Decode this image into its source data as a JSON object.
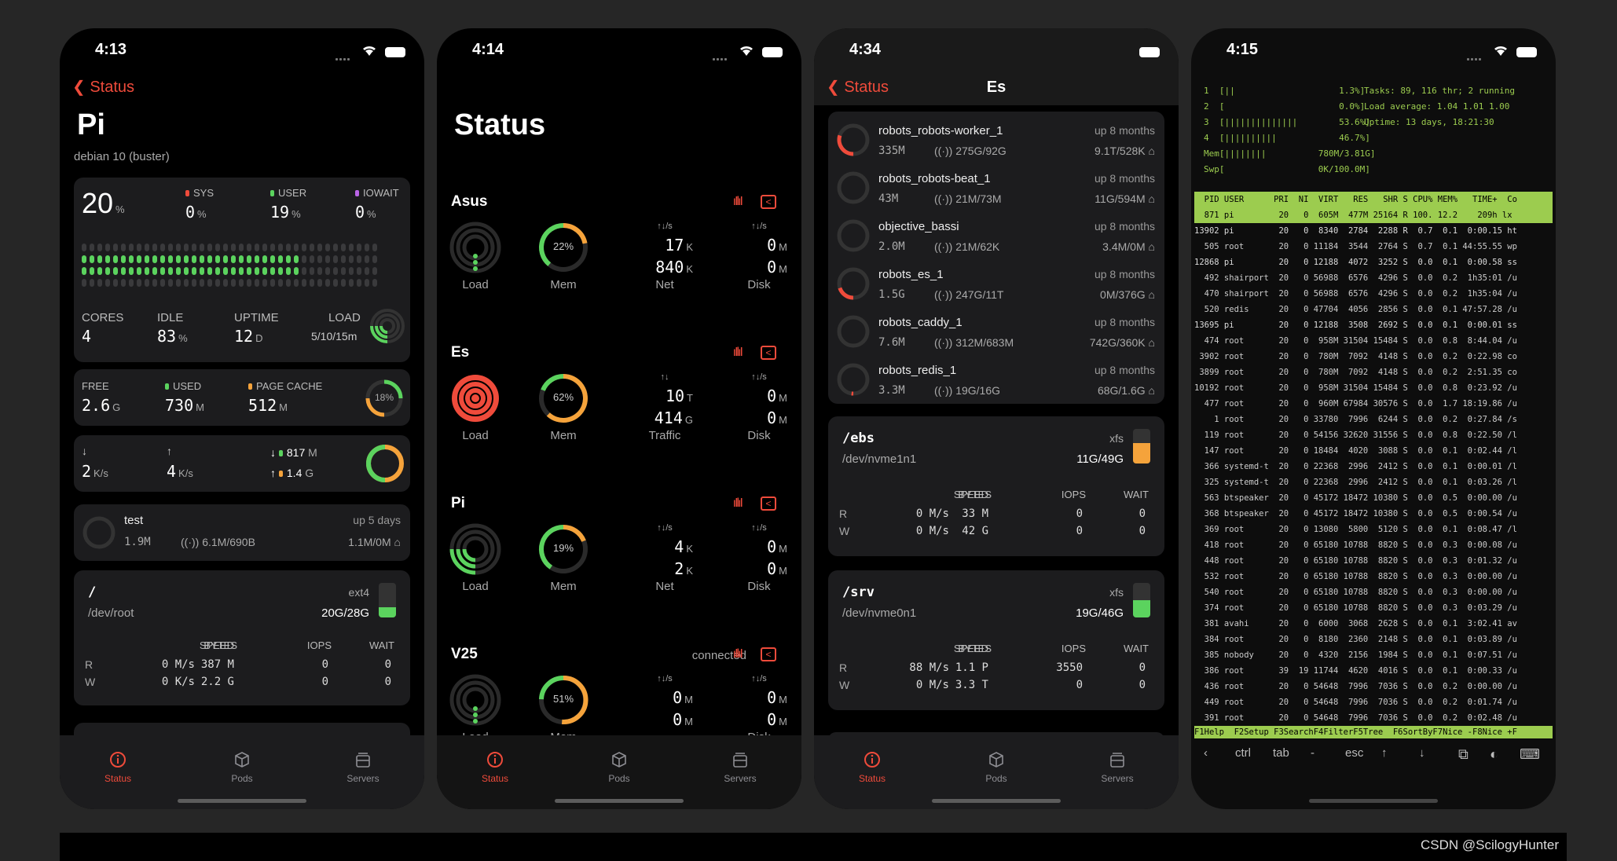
{
  "p1": {
    "time": "4:13",
    "back": "Status",
    "title": "Pi",
    "subtitle": "debian 10 (buster)",
    "cpu": {
      "total": "20",
      "unit": "%",
      "sys_label": "SYS",
      "sys": "0",
      "user_label": "USER",
      "user": "19",
      "iowait_label": "IOWAIT",
      "iowait": "0",
      "pct": "%"
    },
    "stats": {
      "cores_label": "CORES",
      "cores": "4",
      "idle_label": "IDLE",
      "idle": "83",
      "idle_unit": "%",
      "uptime_label": "UPTIME",
      "uptime": "12",
      "uptime_unit": "D",
      "load_label": "LOAD",
      "load": "5/10/15m"
    },
    "mem": {
      "free_label": "FREE",
      "free": "2.6",
      "free_unit": "G",
      "used_label": "USED",
      "used": "730",
      "used_unit": "M",
      "cache_label": "PAGE CACHE",
      "cache": "512",
      "cache_unit": "M",
      "pct": "18%"
    },
    "net": {
      "down_arrow": "↓",
      "up_arrow": "↑",
      "down": "2",
      "down_unit": "K/s",
      "up": "4",
      "up_unit": "K/s",
      "rx": "817",
      "rx_unit": "M",
      "tx": "1.4",
      "tx_unit": "G"
    },
    "container": {
      "name": "test",
      "uptime": "up 5 days",
      "mem": "1.9M",
      "net": "6.1M/690B",
      "io": "1.1M/0M"
    },
    "disk": {
      "mount": "/",
      "fs": "ext4",
      "dev": "/dev/root",
      "usage": "20G/28G",
      "h": [
        "SPEED",
        "BYTES",
        "IOPS",
        "WAIT"
      ],
      "r": [
        "R",
        "0 M/s",
        "387 M",
        "0",
        "0"
      ],
      "w": [
        "W",
        "0 K/s",
        "2.2 G",
        "0",
        "0"
      ]
    }
  },
  "p2": {
    "time": "4:14",
    "title": "Status",
    "sections": [
      {
        "name": "Asus",
        "status": "",
        "mem": "22%",
        "net1": "17",
        "net1u": "K",
        "net2": "840",
        "net2u": "K",
        "disk1": "0",
        "disk1u": "M",
        "disk2": "0",
        "disk2u": "M",
        "label3": "Net"
      },
      {
        "name": "Es",
        "status": "",
        "mem": "62%",
        "net1": "10",
        "net1u": "T",
        "net2": "414",
        "net2u": "G",
        "disk1": "0",
        "disk1u": "M",
        "disk2": "0",
        "disk2u": "M",
        "label3": "Traffic"
      },
      {
        "name": "Pi",
        "status": "",
        "mem": "19%",
        "net1": "4",
        "net1u": "K",
        "net2": "2",
        "net2u": "K",
        "disk1": "0",
        "disk1u": "M",
        "disk2": "0",
        "disk2u": "M",
        "label3": "Net"
      },
      {
        "name": "V25",
        "status": "connected",
        "mem": "51%",
        "net1": "0",
        "net1u": "M",
        "net2": "0",
        "net2u": "M",
        "disk1": "0",
        "disk1u": "M",
        "disk2": "0",
        "disk2u": "M",
        "label3": ""
      }
    ],
    "load_label": "Load",
    "mem_label": "Mem",
    "disk_label": "Disk",
    "rate_label": "↑↓/s",
    "total_label": "↑↓"
  },
  "p3": {
    "time": "4:34",
    "back": "Status",
    "title": "Es",
    "containers": [
      {
        "name": "robots_robots-worker_1",
        "up": "up 8 months",
        "mem": "335M",
        "net": "275G/92G",
        "io": "9.1T/528K",
        "ring": 0.3
      },
      {
        "name": "robots_robots-beat_1",
        "up": "up 8 months",
        "mem": "43M",
        "net": "21M/73M",
        "io": "11G/594M",
        "ring": 0
      },
      {
        "name": "objective_bassi",
        "up": "up 8 months",
        "mem": "2.0M",
        "net": "21M/62K",
        "io": "3.4M/0M",
        "ring": 0
      },
      {
        "name": "robots_es_1",
        "up": "up 8 months",
        "mem": "1.5G",
        "net": "247G/11T",
        "io": "0M/376G",
        "ring": 0.2
      },
      {
        "name": "robots_caddy_1",
        "up": "up 8 months",
        "mem": "7.6M",
        "net": "312M/683M",
        "io": "742G/360K",
        "ring": 0
      },
      {
        "name": "robots_redis_1",
        "up": "up 8 months",
        "mem": "3.3M",
        "net": "19G/16G",
        "io": "68G/1.6G",
        "ring": 0.02
      }
    ],
    "disks": [
      {
        "mount": "/ebs",
        "fs": "xfs",
        "dev": "/dev/nvme1n1",
        "usage": "11G/49G",
        "h": [
          "SPEED",
          "BYTES",
          "IOPS",
          "WAIT"
        ],
        "r": [
          "R",
          "0 M/s",
          "33 M",
          "0",
          "0"
        ],
        "w": [
          "W",
          "0 M/s",
          "42 G",
          "0",
          "0"
        ],
        "fill": 0.6,
        "color": "#f5a33b"
      },
      {
        "mount": "/srv",
        "fs": "xfs",
        "dev": "/dev/nvme0n1",
        "usage": "19G/46G",
        "h": [
          "SPEED",
          "BYTES",
          "IOPS",
          "WAIT"
        ],
        "r": [
          "R",
          "88 M/s",
          "1.1 P",
          "3550",
          "0"
        ],
        "w": [
          "W",
          "0 M/s",
          "3.3 T",
          "0",
          "0"
        ],
        "fill": 0.5,
        "color": "#5bd35e"
      }
    ]
  },
  "p4": {
    "time": "4:15",
    "meters": [
      "1  [||                    1.3%]",
      "2  [                      0.0%]",
      "3  [||||||||||||||        53.6%]",
      "4  [||||||||||            46.7%]",
      "Mem[||||||||          780M/3.81G]",
      "Swp[                  0K/100.0M]"
    ],
    "info": [
      "Tasks: 89, 116 thr; 2 running",
      "Load average: 1.04 1.01 1.00",
      "Uptime: 13 days, 18:21:30"
    ],
    "header": "  PID USER      PRI  NI  VIRT   RES   SHR S CPU% MEM%   TIME+  Co",
    "selected": "  871 pi         20   0  605M  477M 25164 R 100. 12.2    209h lx",
    "rows": [
      "13902 pi         20   0  8340  2784  2288 R  0.7  0.1  0:00.15 ht",
      "  505 root       20   0 11184  3544  2764 S  0.7  0.1 44:55.55 wp",
      "12868 pi         20   0 12188  4072  3252 S  0.0  0.1  0:00.58 ss",
      "  492 shairport  20   0 56988  6576  4296 S  0.0  0.2  1h35:01 /u",
      "  470 shairport  20   0 56988  6576  4296 S  0.0  0.2  1h35:04 /u",
      "  520 redis      20   0 47704  4056  2856 S  0.0  0.1 47:57.28 /u",
      "13695 pi         20   0 12188  3508  2692 S  0.0  0.1  0:00.01 ss",
      "  474 root       20   0  958M 31504 15484 S  0.0  0.8  8:44.04 /u",
      " 3902 root       20   0  780M  7092  4148 S  0.0  0.2  0:22.98 co",
      " 3899 root       20   0  780M  7092  4148 S  0.0  0.2  2:51.35 co",
      "10192 root       20   0  958M 31504 15484 S  0.0  0.8  0:23.92 /u",
      "  477 root       20   0  960M 67984 30576 S  0.0  1.7 18:19.86 /u",
      "    1 root       20   0 33780  7996  6244 S  0.0  0.2  0:27.84 /s",
      "  119 root       20   0 54156 32620 31556 S  0.0  0.8  0:22.50 /l",
      "  147 root       20   0 18484  4020  3088 S  0.0  0.1  0:02.44 /l",
      "  366 systemd-t  20   0 22368  2996  2412 S  0.0  0.1  0:00.01 /l",
      "  325 systemd-t  20   0 22368  2996  2412 S  0.0  0.1  0:03.26 /l",
      "  563 btspeaker  20   0 45172 18472 10380 S  0.0  0.5  0:00.00 /u",
      "  368 btspeaker  20   0 45172 18472 10380 S  0.0  0.5  0:00.54 /u",
      "  369 root       20   0 13080  5800  5120 S  0.0  0.1  0:08.47 /l",
      "  418 root       20   0 65180 10788  8820 S  0.0  0.3  0:00.08 /u",
      "  448 root       20   0 65180 10788  8820 S  0.0  0.3  0:01.32 /u",
      "  532 root       20   0 65180 10788  8820 S  0.0  0.3  0:00.00 /u",
      "  540 root       20   0 65180 10788  8820 S  0.0  0.3  0:00.00 /u",
      "  374 root       20   0 65180 10788  8820 S  0.0  0.3  0:03.29 /u",
      "  381 avahi      20   0  6000  3068  2628 S  0.0  0.1  3:02.41 av",
      "  384 root       20   0  8180  2360  2148 S  0.0  0.1  0:03.89 /u",
      "  385 nobody     20   0  4320  2156  1984 S  0.0  0.1  0:07.51 /u",
      "  386 root       39  19 11744  4620  4016 S  0.0  0.1  0:00.33 /u",
      "  436 root       20   0 54648  7996  7036 S  0.0  0.2  0:00.00 /u",
      "  449 root       20   0 54648  7996  7036 S  0.0  0.2  0:01.74 /u",
      "  391 root       20   0 54648  7996  7036 S  0.0  0.2  0:02.48 /u"
    ],
    "fkeys": "F1Help  F2Setup F3SearchF4FilterF5Tree  F6SortByF7Nice -F8Nice +F",
    "keys": [
      "‹",
      "ctrl",
      "tab",
      "-",
      "esc",
      "↑",
      "↓"
    ]
  },
  "tabs": {
    "status": "Status",
    "pods": "Pods",
    "servers": "Servers"
  },
  "credit": "CSDN @ScilogyHunter",
  "colors": {
    "accent": "#ef4b3b",
    "green": "#5bd35e",
    "orange": "#f5a33b",
    "purple": "#b964e6"
  }
}
